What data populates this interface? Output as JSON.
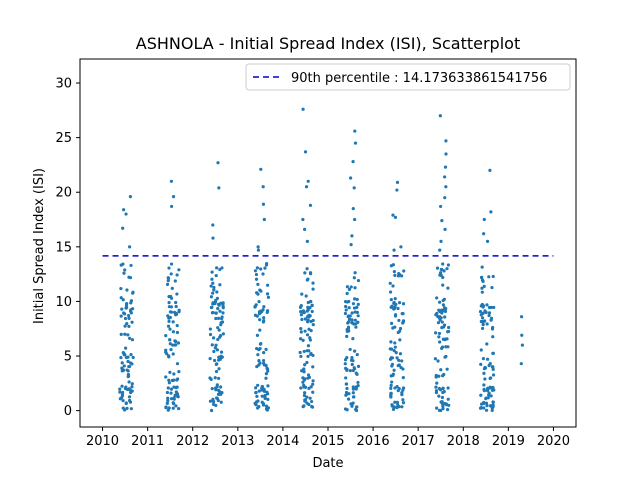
{
  "chart_data": {
    "type": "scatter",
    "title": "ASHNOLA - Initial Spread Index (ISI), Scatterplot",
    "xlabel": "Date",
    "ylabel": "Initial Spread Index (ISI)",
    "x_tick_labels": [
      "2010",
      "2011",
      "2012",
      "2013",
      "2014",
      "2015",
      "2016",
      "2017",
      "2018",
      "2019",
      "2020"
    ],
    "y_tick_labels": [
      "0",
      "5",
      "10",
      "15",
      "20",
      "25",
      "30"
    ],
    "y_ticks": [
      0,
      5,
      10,
      15,
      20,
      25,
      30
    ],
    "xlim": [
      2009.5,
      2020.5
    ],
    "ylim": [
      -1.5,
      32.2
    ],
    "grid": false,
    "legend_position": "top-right",
    "reference_line": {
      "label": "90th percentile : 14.173633861541756",
      "value": 14.173633861541756,
      "color": "#0000cc",
      "style": "dashed"
    },
    "point_color": "#1f77b4",
    "season_clusters": [
      {
        "season": 2010,
        "start": 2010.38,
        "end": 2010.68,
        "max": 19.6,
        "outliers": [
          19.6,
          18.4,
          18.0,
          16.7,
          15.0
        ]
      },
      {
        "season": 2011,
        "start": 2011.4,
        "end": 2011.7,
        "max": 21.0,
        "outliers": [
          21.0,
          19.6,
          18.7
        ]
      },
      {
        "season": 2012,
        "start": 2012.38,
        "end": 2012.68,
        "max": 22.7,
        "outliers": [
          22.7,
          20.4,
          17.0,
          15.8
        ]
      },
      {
        "season": 2013,
        "start": 2013.38,
        "end": 2013.68,
        "max": 22.1,
        "outliers": [
          22.1,
          20.5,
          18.9,
          17.5,
          15.0,
          14.7
        ]
      },
      {
        "season": 2014,
        "start": 2014.38,
        "end": 2014.68,
        "max": 27.6,
        "outliers": [
          27.6,
          23.7,
          21.0,
          20.5,
          18.8,
          17.5,
          16.6,
          15.5
        ]
      },
      {
        "season": 2015,
        "start": 2015.38,
        "end": 2015.68,
        "max": 25.6,
        "outliers": [
          25.6,
          24.5,
          22.8,
          21.3,
          20.4,
          18.5,
          17.5,
          16.0,
          15.2
        ]
      },
      {
        "season": 2016,
        "start": 2016.38,
        "end": 2016.68,
        "max": 20.9,
        "outliers": [
          20.9,
          20.2,
          17.9,
          17.7,
          15.0,
          14.7
        ]
      },
      {
        "season": 2017,
        "start": 2017.38,
        "end": 2017.68,
        "max": 27.0,
        "outliers": [
          27.0,
          24.7,
          23.5,
          22.3,
          21.4,
          20.5,
          19.5,
          18.7,
          17.4,
          16.6,
          15.5,
          14.7
        ]
      },
      {
        "season": 2018,
        "start": 2018.38,
        "end": 2018.68,
        "max": 22.0,
        "outliers": [
          22.0,
          18.2,
          17.5,
          16.2,
          15.5
        ]
      },
      {
        "season": 2019,
        "start": 2019.28,
        "end": 2019.32,
        "points": [
          8.6,
          6.9,
          6.0,
          4.3
        ]
      }
    ]
  }
}
